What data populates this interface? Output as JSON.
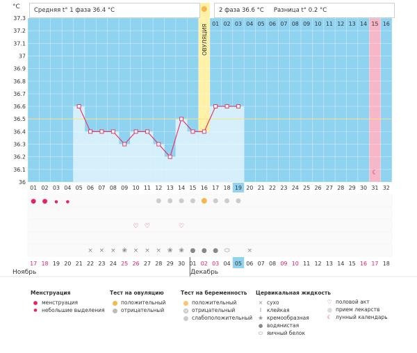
{
  "header": {
    "phase1": "Средняя t° 1 фаза 36.4 °C",
    "phase2": "2 фаза 36.6 °C",
    "diff": "Разница t° 0.2 °C"
  },
  "ovulation_label": "ОВУЛЯЦИЯ",
  "months": {
    "nov": "Ноябрь",
    "dec": "Декабрь"
  },
  "colors": {
    "pink_text": "#e8225f",
    "blue_bg": "#8fd3f0",
    "ovul": "#fff1a8",
    "line": "#e03a6a",
    "bar": "#d6f0fb",
    "pink_col": "#f6b8c8"
  },
  "chart_data": {
    "type": "line",
    "title": "",
    "ylabel": "°C",
    "y_ticks": [
      "37.3",
      "37.2",
      "37.1",
      "37",
      "36.9",
      "36.8",
      "36.7",
      "36.6",
      "36.5",
      "36.4",
      "36.3",
      "36.2",
      "36.1",
      "36"
    ],
    "ylim": [
      36,
      37.3
    ],
    "coverline": 36.5,
    "day_numbers": [
      "01",
      "02",
      "03",
      "04",
      "05",
      "06",
      "07",
      "08",
      "09",
      "10",
      "11",
      "12",
      "13",
      "14",
      "15",
      "16",
      "17",
      "18",
      "19",
      "20",
      "21",
      "22",
      "23",
      "24",
      "25",
      "26",
      "27",
      "28",
      "29",
      "30",
      "31",
      "32"
    ],
    "dates": [
      "17",
      "18",
      "19",
      "20",
      "21",
      "22",
      "23",
      "24",
      "25",
      "26",
      "27",
      "28",
      "29",
      "30",
      "01",
      "02",
      "03",
      "04",
      "05",
      "06",
      "07",
      "08",
      "09",
      "10",
      "11",
      "12",
      "13",
      "14",
      "15",
      "16",
      "17",
      "18"
    ],
    "top_row_numbers": [
      "01",
      "02",
      "03",
      "04",
      "05",
      "06",
      "07",
      "08",
      "09",
      "10",
      "11",
      "12",
      "13",
      "14",
      "15",
      "16"
    ],
    "temps": [
      null,
      null,
      null,
      null,
      36.6,
      36.4,
      36.4,
      36.4,
      36.3,
      36.4,
      36.4,
      36.3,
      36.2,
      36.5,
      36.4,
      36.4,
      36.6,
      36.6,
      36.6
    ],
    "today_day": 19,
    "ovulation_day": 16,
    "lunar_day": 31,
    "grid": true,
    "legend_placement": "bottom"
  },
  "legend": {
    "menstruation": {
      "title": "Менструация",
      "items": [
        "менструация",
        "небольшие выделения"
      ]
    },
    "ovulation_test": {
      "title": "Тест на овуляцию",
      "items": [
        "положительный",
        "отрицательный"
      ]
    },
    "pregnancy_test": {
      "title": "Тест на беременность",
      "items": [
        "положительный",
        "отрицательный",
        "слабоположительный"
      ]
    },
    "cervical": {
      "title": "Цервикальная жидкость",
      "items": [
        "сухо",
        "клейкая",
        "кремообразная",
        "водянистая",
        "яичный белок"
      ]
    },
    "other": {
      "items": [
        "половой акт",
        "прием лекарств",
        "лунный календарь"
      ]
    }
  }
}
